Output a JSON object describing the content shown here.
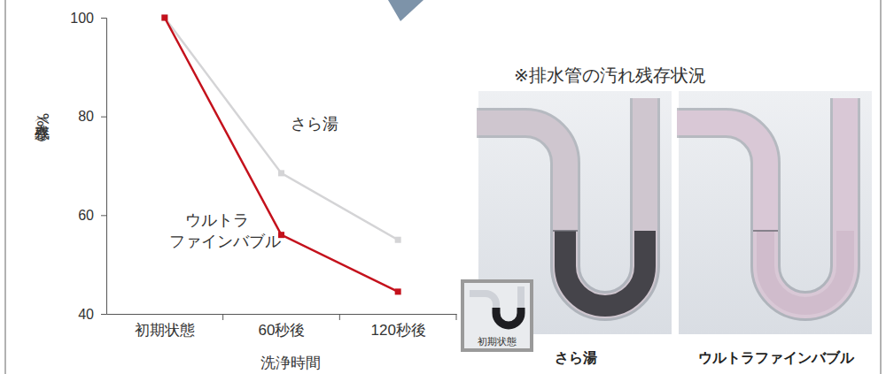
{
  "chart_data": {
    "type": "line",
    "x_label": "洗浄時間",
    "y_label": "残存率（%）",
    "categories": [
      "初期状態",
      "60秒後",
      "120秒後"
    ],
    "series": [
      {
        "name": "さら湯",
        "color": "#d4d4d6",
        "marker": "square",
        "values": [
          100,
          68.5,
          55
        ]
      },
      {
        "name": "ウルトラファインバブル",
        "color": "#c4111c",
        "marker": "square",
        "values": [
          100,
          56,
          44.5
        ]
      }
    ],
    "ylim": [
      40,
      100
    ],
    "yticks": [
      40,
      60,
      80,
      100
    ],
    "grid": false,
    "annotations": [
      "※排水管の汚れ残存状況",
      "初期状態",
      "さら湯",
      "ウルトラファインバブル"
    ]
  }
}
